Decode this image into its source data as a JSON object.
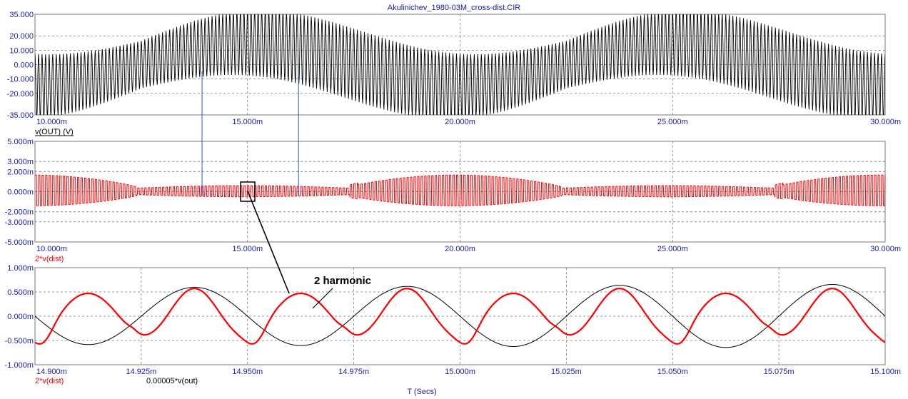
{
  "window": {
    "title": "Akulinichev_1980-03M_cross-dist.CIR"
  },
  "colors": {
    "axis_text": "#1a1ab4",
    "red": "#ff0000",
    "black": "#000000",
    "cursor": "#3355cc"
  },
  "chart_data": [
    {
      "type": "line",
      "panel": "top",
      "series": [
        {
          "name": "v(OUT) (V)",
          "color": "#000000",
          "carrier_cycles": 240,
          "envelope": "sine",
          "period_ms": 10,
          "amplitude": [
            16.5,
            25
          ],
          "offset_sine": 15
        }
      ],
      "ylim": [
        -35,
        35
      ],
      "yticks": [
        35,
        20,
        10,
        0,
        -10,
        -20,
        -35
      ],
      "ytick_labels": [
        "35.000",
        "20.000",
        "10.000",
        "0.000",
        "-10.000",
        "-20.000",
        "-35.000"
      ],
      "xlim": [
        10,
        30
      ],
      "xticks": [
        10,
        15,
        20,
        25,
        30
      ],
      "xtick_labels": [
        "10.000m",
        "15.000m",
        "20.000m",
        "25.000m",
        "30.000m"
      ],
      "trace_labels": [
        {
          "text": "v(OUT) (V)",
          "color": "#000000"
        }
      ]
    },
    {
      "type": "line",
      "panel": "middle",
      "series": [
        {
          "name": "2*v(dist)",
          "color": "#ff0000"
        }
      ],
      "ylim": [
        -5,
        5
      ],
      "yticks": [
        5,
        3,
        2,
        0,
        -2,
        -3,
        -5
      ],
      "ytick_labels": [
        "5.000m",
        "3.000m",
        "2.000m",
        "0.000m",
        "-2.000m",
        "-3.000m",
        "-5.000m"
      ],
      "xlim": [
        10,
        30
      ],
      "xticks": [
        10,
        15,
        20,
        25,
        30
      ],
      "xtick_labels": [
        "10.000m",
        "15.000m",
        "20.000m",
        "25.000m",
        "30.000m"
      ],
      "trace_labels": [
        {
          "text": "2*v(dist)",
          "color": "#ff0000"
        }
      ]
    },
    {
      "type": "line",
      "panel": "bottom",
      "series": [
        {
          "name": "2*v(dist)",
          "color": "#ff0000"
        },
        {
          "name": "0.00005*v(out)",
          "color": "#000000"
        }
      ],
      "ylim": [
        -1,
        1
      ],
      "yticks": [
        1,
        0.5,
        0,
        -0.5,
        -1
      ],
      "ytick_labels": [
        "1.000m",
        "0.500m",
        "0.000m",
        "-0.500m",
        "-1.000m"
      ],
      "xlim": [
        14.9,
        15.1
      ],
      "xticks": [
        14.9,
        14.925,
        14.95,
        14.975,
        15.0,
        15.025,
        15.05,
        15.075,
        15.1
      ],
      "xtick_labels": [
        "14.900m",
        "14.925m",
        "14.950m",
        "14.975m",
        "15.000m",
        "15.025m",
        "15.050m",
        "15.075m",
        "15.100m"
      ],
      "xlabel": "T (Secs)",
      "trace_labels": [
        {
          "text": "2*v(dist)",
          "color": "#ff0000"
        },
        {
          "text": "0.00005*v(out)",
          "color": "#000000"
        }
      ],
      "annotation": "2 harmonic"
    }
  ]
}
